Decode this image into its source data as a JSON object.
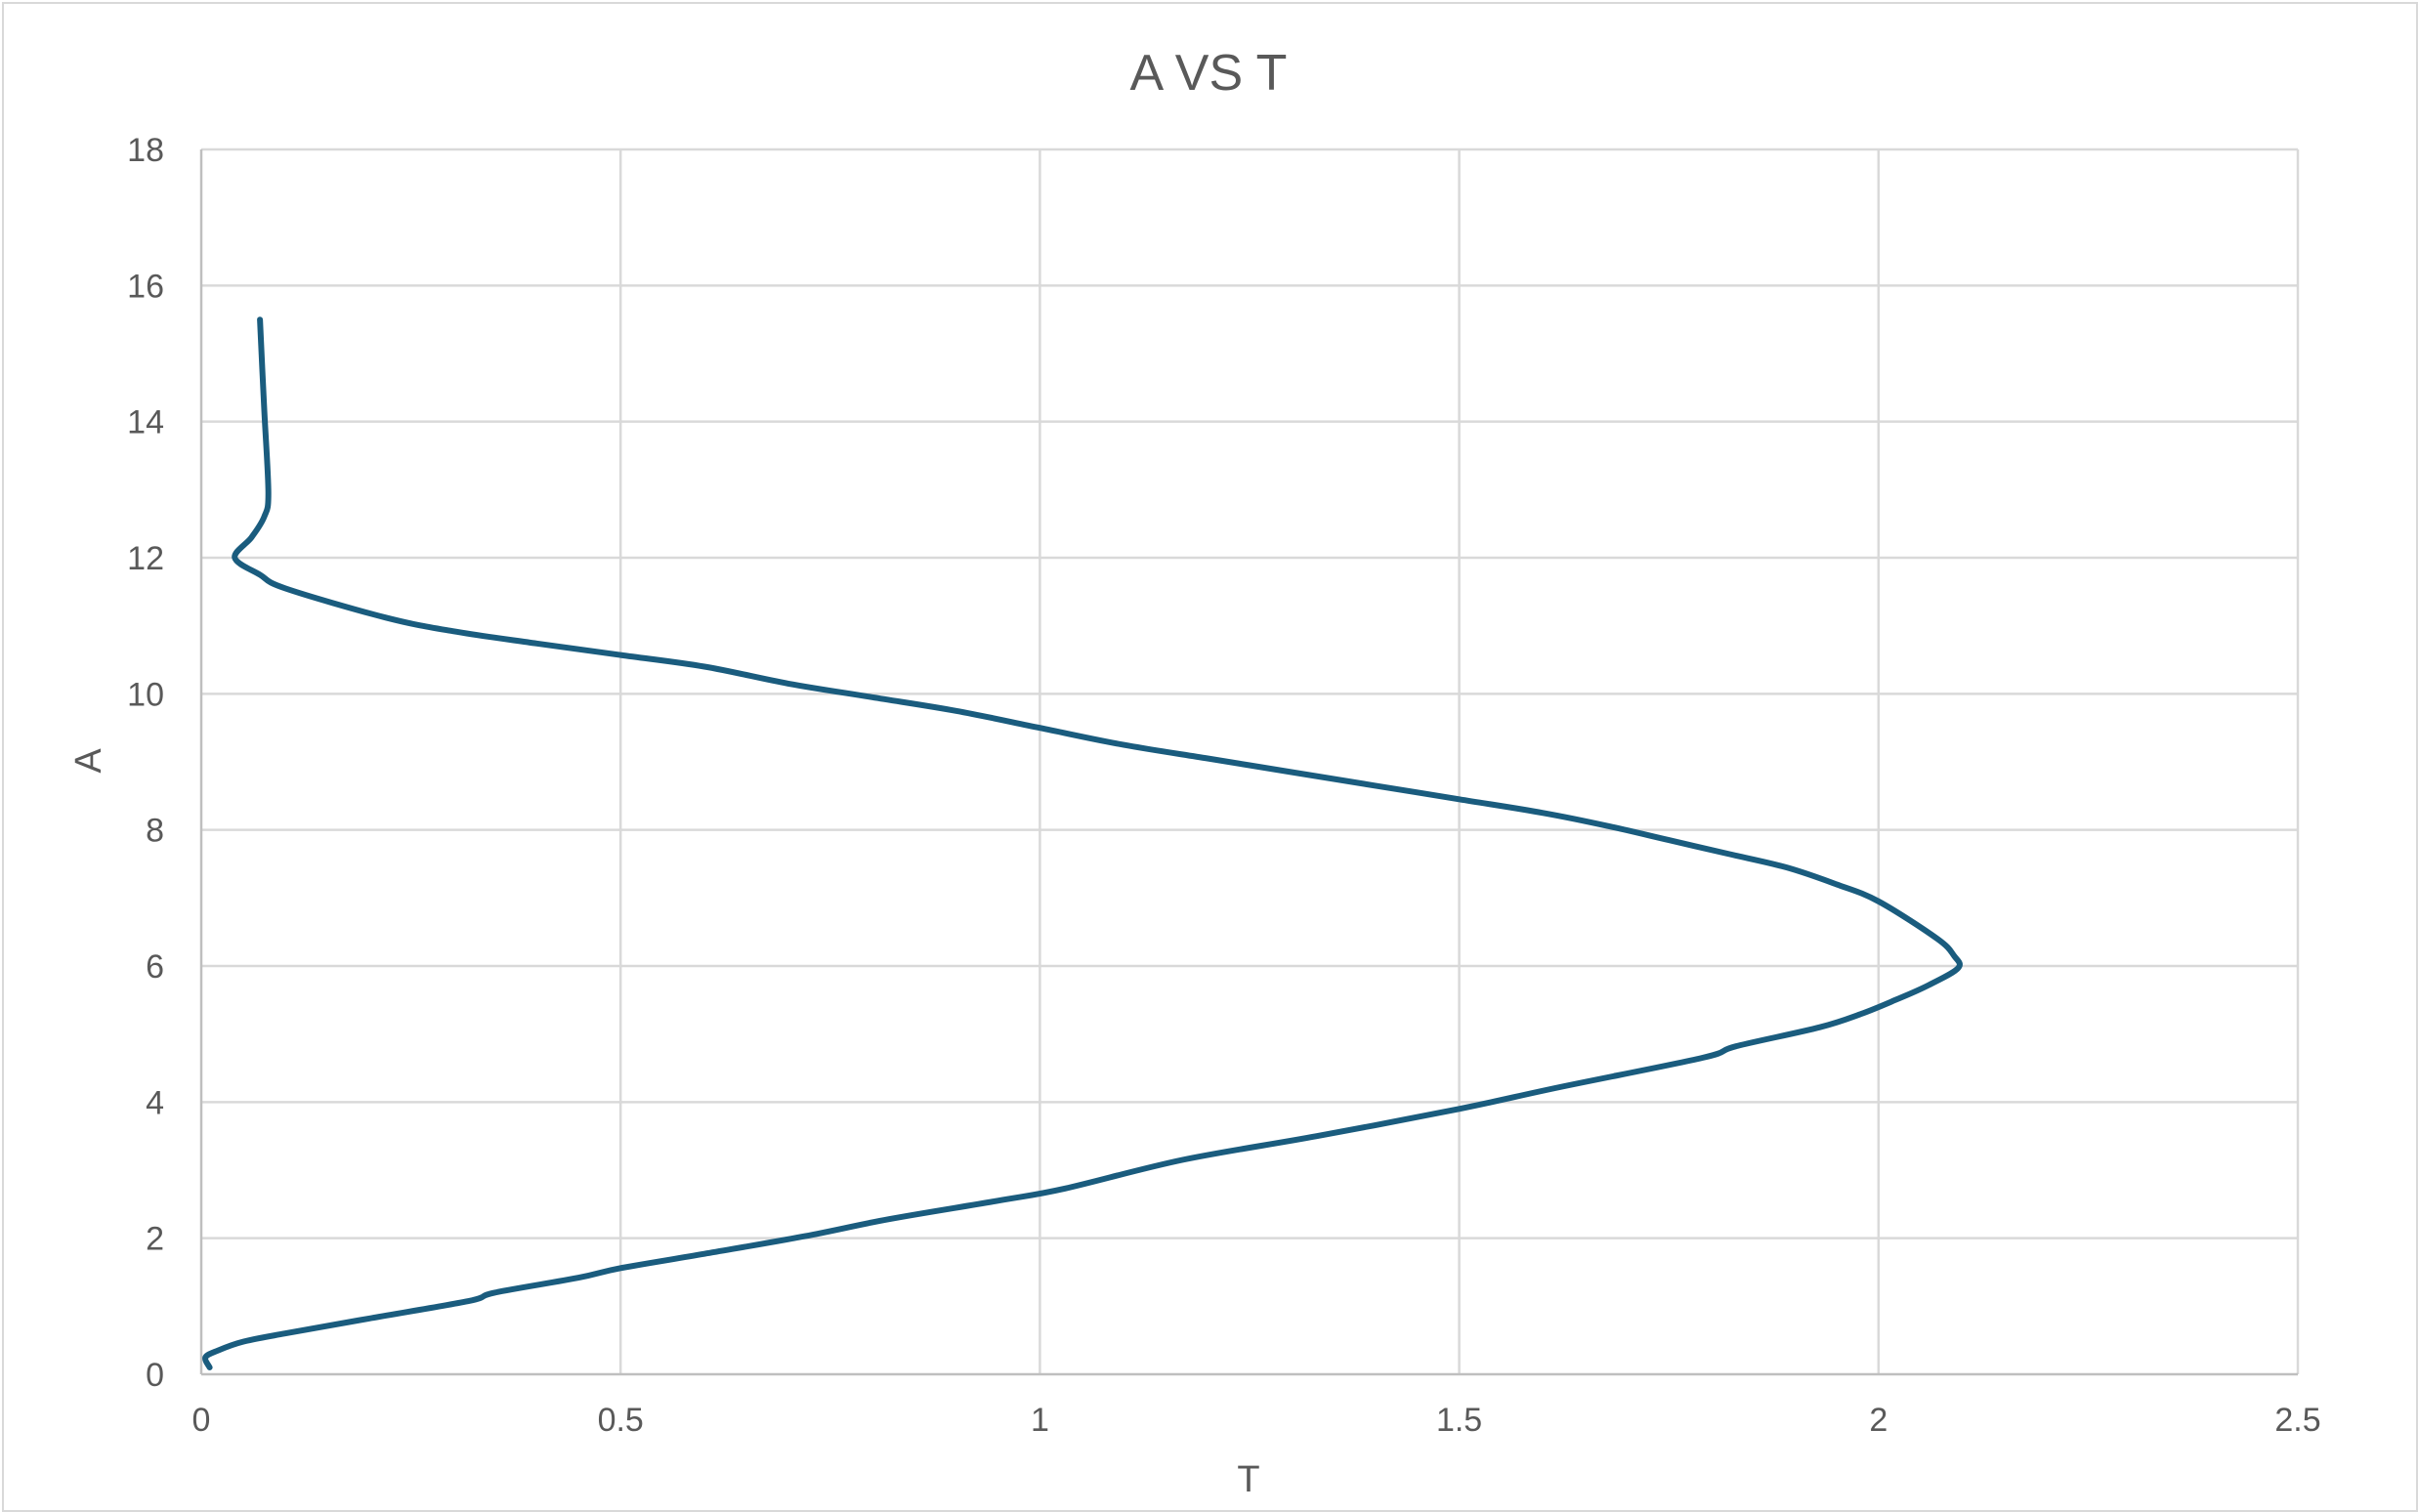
{
  "chart_data": {
    "type": "line",
    "title": "A VS T",
    "xlabel": "T",
    "ylabel": "A",
    "xlim": [
      0,
      2.5
    ],
    "ylim": [
      0,
      18
    ],
    "xticks": [
      0,
      0.5,
      1,
      1.5,
      2,
      2.5
    ],
    "xtick_labels": [
      "0",
      "0.5",
      "1",
      "1.5",
      "2",
      "2.5"
    ],
    "yticks": [
      0,
      2,
      4,
      6,
      8,
      10,
      12,
      14,
      16,
      18
    ],
    "ytick_labels": [
      "0",
      "2",
      "4",
      "6",
      "8",
      "10",
      "12",
      "14",
      "16",
      "18"
    ],
    "grid": true,
    "legend": "none",
    "series": [
      {
        "color": "#1a5c7e",
        "x": [
          0.01,
          0.005,
          0.02,
          0.05,
          0.1,
          0.2,
          0.32,
          0.35,
          0.45,
          0.5,
          0.6,
          0.72,
          0.82,
          0.95,
          1.03,
          1.17,
          1.33,
          1.5,
          1.62,
          1.79,
          1.83,
          1.93,
          1.98,
          2.02,
          2.06,
          2.095,
          2.09,
          2.07,
          2.0,
          1.95,
          1.89,
          1.82,
          1.75,
          1.68,
          1.6,
          1.5,
          1.4,
          1.3,
          1.2,
          1.1,
          1.0,
          0.9,
          0.8,
          0.7,
          0.6,
          0.5,
          0.4,
          0.3,
          0.22,
          0.1,
          0.07,
          0.04,
          0.06,
          0.075,
          0.08,
          0.075,
          0.07
        ],
        "y": [
          0.1,
          0.25,
          0.35,
          0.48,
          0.6,
          0.82,
          1.08,
          1.2,
          1.42,
          1.56,
          1.77,
          2.03,
          2.28,
          2.55,
          2.73,
          3.15,
          3.5,
          3.9,
          4.22,
          4.65,
          4.82,
          5.1,
          5.3,
          5.5,
          5.72,
          5.97,
          6.15,
          6.4,
          6.95,
          7.2,
          7.45,
          7.65,
          7.85,
          8.05,
          8.25,
          8.45,
          8.65,
          8.85,
          9.05,
          9.25,
          9.5,
          9.75,
          9.95,
          10.15,
          10.4,
          10.57,
          10.74,
          10.92,
          11.12,
          11.55,
          11.75,
          12.0,
          12.3,
          12.6,
          12.95,
          14.2,
          15.5
        ]
      }
    ]
  }
}
